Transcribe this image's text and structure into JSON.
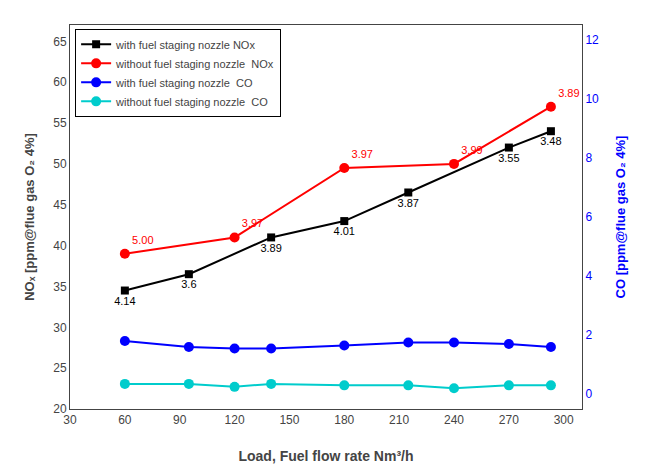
{
  "chart_data": {
    "type": "line",
    "xlabel": "Load, Fuel flow rate Nm³/h",
    "ylabel": "NOₓ [ppm@flue gas O₂ 4%]",
    "y2label": "CO [ppm@flue gas O₂ 4%]",
    "xlim": [
      30,
      310
    ],
    "xticks": [
      30,
      60,
      90,
      120,
      150,
      180,
      210,
      240,
      270,
      300
    ],
    "ylim": [
      20,
      67
    ],
    "yticks": [
      20,
      25,
      30,
      35,
      40,
      45,
      50,
      55,
      60,
      65
    ],
    "y2lim": [
      -0.5,
      12.5
    ],
    "y2ticks": [
      0,
      2,
      4,
      6,
      8,
      10,
      12
    ],
    "grid": false,
    "legend": "upper left",
    "series": [
      {
        "name": "with fuel staging nozzle NOx",
        "color": "#000000",
        "marker": "square",
        "x": [
          60,
          95,
          140,
          180,
          215,
          270,
          293
        ],
        "values": [
          34.5,
          36.5,
          41.0,
          43.0,
          46.5,
          52.0,
          54.0
        ],
        "annotations": [
          "4.14",
          "3.6",
          "3.89",
          "4.01",
          "3.87",
          "3.55",
          "3.48"
        ]
      },
      {
        "name": "without fuel staging nozzle  NOx",
        "color": "#ff0000",
        "marker": "circle",
        "x": [
          60,
          120,
          180,
          240,
          293
        ],
        "values": [
          39.0,
          41.0,
          49.5,
          50.0,
          57.0
        ],
        "annotations": [
          "5.00",
          "3.97",
          "3.97",
          "3.99",
          "3.89"
        ]
      },
      {
        "name": "with fuel staging nozzle  CO",
        "color": "#0000ff",
        "marker": "circle",
        "axis": "y2",
        "x": [
          60,
          95,
          120,
          140,
          180,
          215,
          240,
          270,
          293
        ],
        "values": [
          1.8,
          1.6,
          1.55,
          1.55,
          1.65,
          1.75,
          1.75,
          1.7,
          1.6
        ]
      },
      {
        "name": "without fuel staging nozzle  CO",
        "color": "#00cccc",
        "marker": "circle",
        "axis": "y2",
        "x": [
          60,
          95,
          120,
          140,
          180,
          215,
          240,
          270,
          293
        ],
        "values": [
          0.35,
          0.35,
          0.25,
          0.35,
          0.3,
          0.3,
          0.2,
          0.3,
          0.3
        ]
      }
    ]
  }
}
